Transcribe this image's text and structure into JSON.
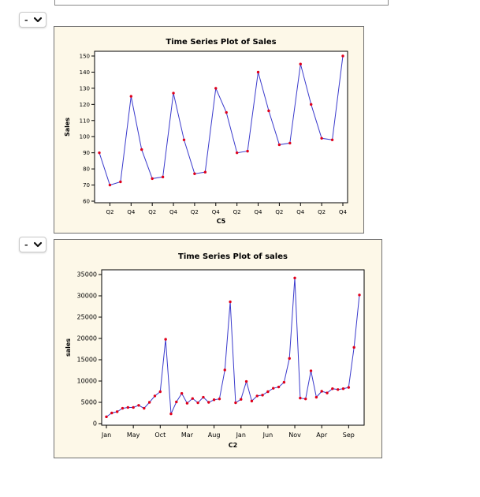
{
  "selectors": [
    {
      "value": "-",
      "icon": "chevron-down-icon"
    },
    {
      "value": "-",
      "icon": "chevron-down-icon"
    }
  ],
  "colors": {
    "panel_bg": "#fdf8e8",
    "line": "#3a3acc",
    "marker": "#e0001a"
  },
  "charts": [
    {
      "type": "line",
      "title": "Time Series Plot of Sales",
      "xlabel": "C5",
      "ylabel": "Sales",
      "ylim": [
        60,
        150
      ],
      "yticks": [
        60,
        70,
        80,
        90,
        100,
        110,
        120,
        130,
        140,
        150
      ],
      "tick_labels": [
        "Q2",
        "Q4",
        "Q2",
        "Q4",
        "Q2",
        "Q4",
        "Q2",
        "Q4",
        "Q2",
        "Q4",
        "Q2",
        "Q4"
      ],
      "values": [
        90,
        70,
        72,
        125,
        92,
        74,
        75,
        127,
        98,
        77,
        78,
        130,
        115,
        90,
        91,
        140,
        116,
        95,
        96,
        145,
        120,
        99,
        98,
        150
      ]
    },
    {
      "type": "line",
      "title": "Time Series Plot of sales",
      "xlabel": "C2",
      "ylabel": "sales",
      "ylim": [
        0,
        35000
      ],
      "yticks": [
        0,
        5000,
        10000,
        15000,
        20000,
        25000,
        30000,
        35000
      ],
      "tick_labels": [
        "Jan",
        "May",
        "Oct",
        "Mar",
        "Aug",
        "Jan",
        "Jun",
        "Nov",
        "Apr",
        "Sep"
      ],
      "values": [
        1600,
        2500,
        2800,
        3600,
        3800,
        3800,
        4300,
        3600,
        5000,
        6500,
        7500,
        19800,
        2300,
        5100,
        7100,
        4800,
        5900,
        4900,
        6200,
        5000,
        5600,
        5800,
        12600,
        28600,
        4900,
        5700,
        9900,
        5300,
        6500,
        6700,
        7500,
        8300,
        8600,
        9700,
        15300,
        34200,
        6000,
        5800,
        12400,
        6200,
        7600,
        7200,
        8200,
        8000,
        8200,
        8500,
        17900,
        30200
      ]
    }
  ],
  "chart_data": [
    {
      "type": "line",
      "title": "Time Series Plot of Sales",
      "xlabel": "C5",
      "ylabel": "Sales",
      "ylim": [
        60,
        150
      ],
      "x_tick_labels": [
        "Q2",
        "Q4",
        "Q2",
        "Q4",
        "Q2",
        "Q4",
        "Q2",
        "Q4",
        "Q2",
        "Q4",
        "Q2",
        "Q4"
      ],
      "series": [
        {
          "values": [
            90,
            70,
            72,
            125,
            92,
            74,
            75,
            127,
            98,
            77,
            78,
            130,
            115,
            90,
            91,
            140,
            116,
            95,
            96,
            145,
            120,
            99,
            98,
            150
          ]
        }
      ]
    },
    {
      "type": "line",
      "title": "Time Series Plot of sales",
      "xlabel": "C2",
      "ylabel": "sales",
      "ylim": [
        0,
        35000
      ],
      "x_tick_labels": [
        "Jan",
        "May",
        "Oct",
        "Mar",
        "Aug",
        "Jan",
        "Jun",
        "Nov",
        "Apr",
        "Sep"
      ],
      "series": [
        {
          "values": [
            1600,
            2500,
            2800,
            3600,
            3800,
            3800,
            4300,
            3600,
            5000,
            6500,
            7500,
            19800,
            2300,
            5100,
            7100,
            4800,
            5900,
            4900,
            6200,
            5000,
            5600,
            5800,
            12600,
            28600,
            4900,
            5700,
            9900,
            5300,
            6500,
            6700,
            7500,
            8300,
            8600,
            9700,
            15300,
            34200,
            6000,
            5800,
            12400,
            6200,
            7600,
            7200,
            8200,
            8000,
            8200,
            8500,
            17900,
            30200
          ]
        }
      ]
    }
  ]
}
